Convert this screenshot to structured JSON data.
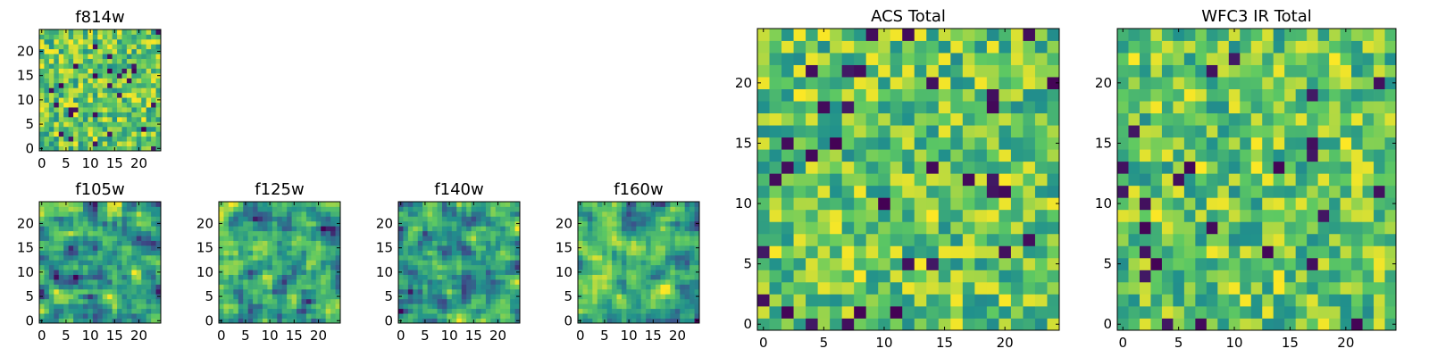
{
  "chart_data": [
    {
      "type": "heatmap",
      "title": "f814w",
      "xlim": [
        0,
        24
      ],
      "ylim": [
        0,
        24
      ],
      "xticks": [
        "0",
        "5",
        "10",
        "15",
        "20"
      ],
      "yticks": [
        "0",
        "5",
        "10",
        "15",
        "20"
      ],
      "grid_size": [
        25,
        25
      ],
      "colormap": "viridis",
      "seed": 11,
      "smooth": false
    },
    {
      "type": "heatmap",
      "title": "f105w",
      "xlim": [
        0,
        24
      ],
      "ylim": [
        0,
        24
      ],
      "xticks": [
        "0",
        "5",
        "10",
        "15",
        "20"
      ],
      "yticks": [
        "0",
        "5",
        "10",
        "15",
        "20"
      ],
      "grid_size": [
        25,
        25
      ],
      "colormap": "viridis",
      "seed": 23,
      "smooth": true
    },
    {
      "type": "heatmap",
      "title": "f125w",
      "xlim": [
        0,
        24
      ],
      "ylim": [
        0,
        24
      ],
      "xticks": [
        "0",
        "5",
        "10",
        "15",
        "20"
      ],
      "yticks": [
        "0",
        "5",
        "10",
        "15",
        "20"
      ],
      "grid_size": [
        25,
        25
      ],
      "colormap": "viridis",
      "seed": 37,
      "smooth": true
    },
    {
      "type": "heatmap",
      "title": "f140w",
      "xlim": [
        0,
        24
      ],
      "ylim": [
        0,
        24
      ],
      "xticks": [
        "0",
        "5",
        "10",
        "15",
        "20"
      ],
      "yticks": [
        "0",
        "5",
        "10",
        "15",
        "20"
      ],
      "grid_size": [
        25,
        25
      ],
      "colormap": "viridis",
      "seed": 41,
      "smooth": true
    },
    {
      "type": "heatmap",
      "title": "f160w",
      "xlim": [
        0,
        24
      ],
      "ylim": [
        0,
        24
      ],
      "xticks": [
        "0",
        "5",
        "10",
        "15",
        "20"
      ],
      "yticks": [
        "0",
        "5",
        "10",
        "15",
        "20"
      ],
      "grid_size": [
        25,
        25
      ],
      "colormap": "viridis",
      "seed": 53,
      "smooth": true
    },
    {
      "type": "heatmap",
      "title": "ACS Total",
      "xlim": [
        0,
        24
      ],
      "ylim": [
        0,
        24
      ],
      "xticks": [
        "0",
        "5",
        "10",
        "15",
        "20"
      ],
      "yticks": [
        "0",
        "5",
        "10",
        "15",
        "20"
      ],
      "grid_size": [
        25,
        25
      ],
      "colormap": "viridis",
      "seed": 67,
      "smooth": false
    },
    {
      "type": "heatmap",
      "title": "WFC3 IR Total",
      "xlim": [
        0,
        24
      ],
      "ylim": [
        0,
        24
      ],
      "xticks": [
        "0",
        "5",
        "10",
        "15",
        "20"
      ],
      "yticks": [
        "0",
        "5",
        "10",
        "15",
        "20"
      ],
      "grid_size": [
        25,
        25
      ],
      "colormap": "viridis",
      "seed": 79,
      "smooth": false
    }
  ],
  "colors": {
    "viridis": [
      "#440154",
      "#3b528b",
      "#21918c",
      "#5ec962",
      "#fde725"
    ],
    "axis": "#000000"
  }
}
